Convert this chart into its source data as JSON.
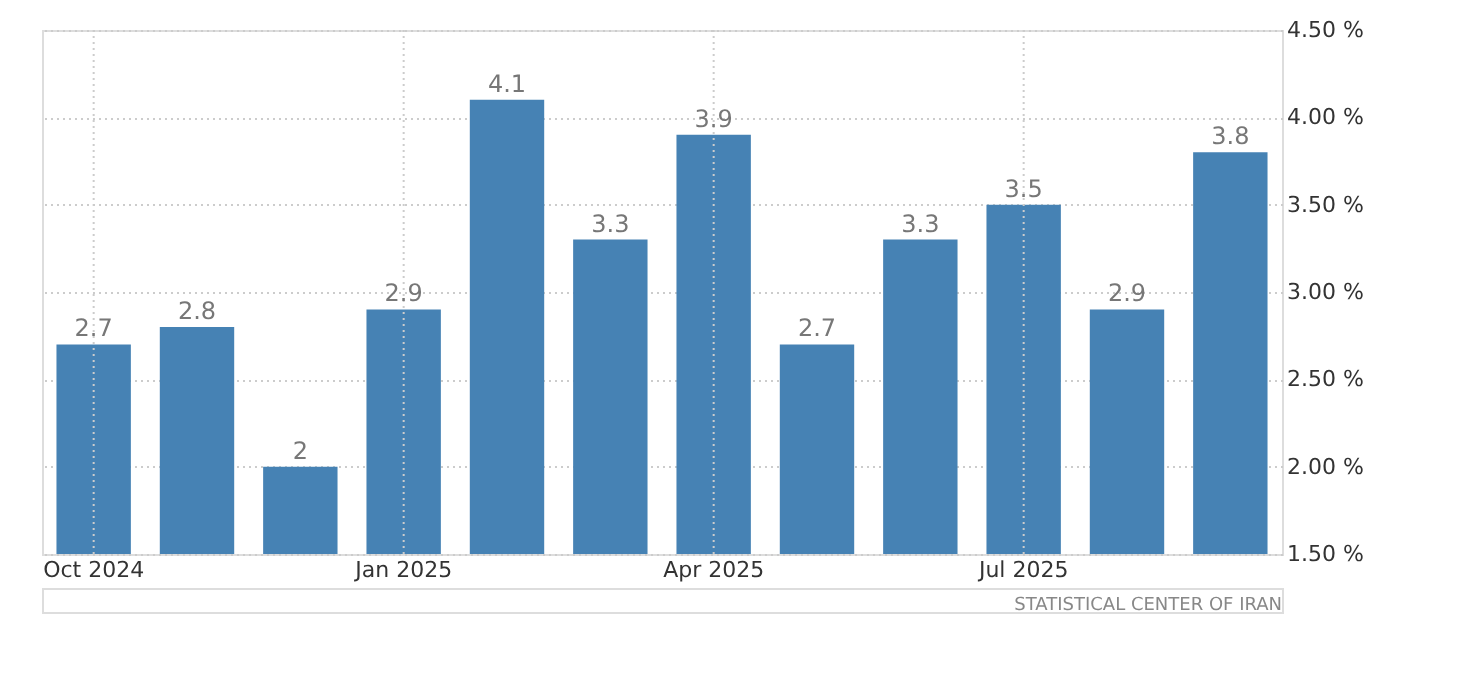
{
  "chart_data": {
    "type": "bar",
    "categories": [
      "Oct 2024",
      null,
      null,
      "Jan 2025",
      null,
      null,
      "Apr 2025",
      null,
      null,
      "Jul 2025",
      null,
      null
    ],
    "values": [
      2.7,
      2.8,
      2,
      2.9,
      4.1,
      3.3,
      3.9,
      2.7,
      3.3,
      3.5,
      2.9,
      3.8
    ],
    "color": "#4682b4",
    "ylim": [
      1.5,
      4.5
    ],
    "yticks": [
      {
        "value": 1.5,
        "label": "1.50 %"
      },
      {
        "value": 2,
        "label": "2.00 %"
      },
      {
        "value": 2.5,
        "label": "2.50 %"
      },
      {
        "value": 3,
        "label": "3.00 %"
      },
      {
        "value": 3.5,
        "label": "3.50 %"
      },
      {
        "value": 4,
        "label": "4.00 %"
      },
      {
        "value": 4.5,
        "label": "4.50 %"
      }
    ],
    "data_labels": true,
    "grid": true,
    "annotations": [
      "STATISTICAL CENTER OF IRAN"
    ]
  }
}
